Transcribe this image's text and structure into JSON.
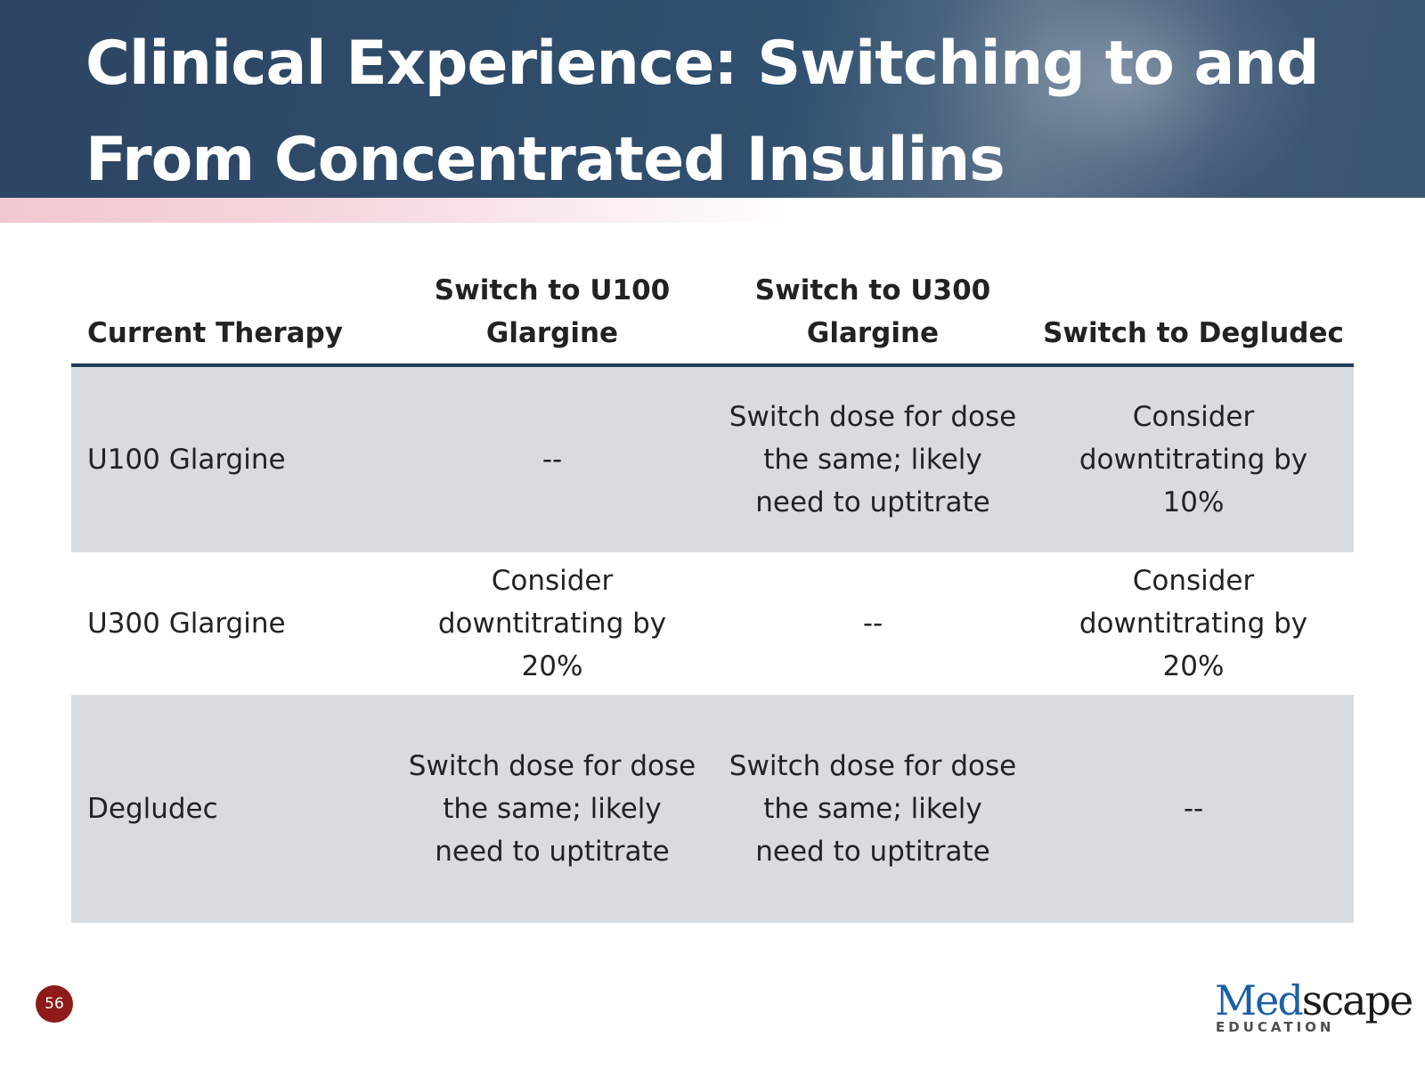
{
  "slide": {
    "title": "Clinical Experience: Switching to and From Concentrated Insulins",
    "number": "56"
  },
  "table": {
    "headers": [
      "Current Therapy",
      "Switch to U100 Glargine",
      "Switch to U300 Glargine",
      "Switch to Degludec"
    ],
    "rows": [
      [
        "U100 Glargine",
        "--",
        "Switch dose for dose the same; likely need to uptitrate",
        "Consider downtitrating by 10%"
      ],
      [
        "U300 Glargine",
        "Consider downtitrating by 20%",
        "--",
        "Consider downtitrating by 20%"
      ],
      [
        "Degludec",
        "Switch dose for dose the same; likely need to uptitrate",
        "Switch dose for dose the same; likely need to uptitrate",
        "--"
      ]
    ]
  },
  "logo": {
    "brand_part1": "Med",
    "brand_part2": "scape",
    "subtitle": "EDUCATION"
  },
  "colors": {
    "header_bg": "#2c4563",
    "accent_pink": "#f1c8cf",
    "header_rule": "#1f3d5a",
    "row_shade": "#d8dcdf",
    "slide_number_badge": "#8f1a1a",
    "brand_blue": "#1d5ea8"
  }
}
